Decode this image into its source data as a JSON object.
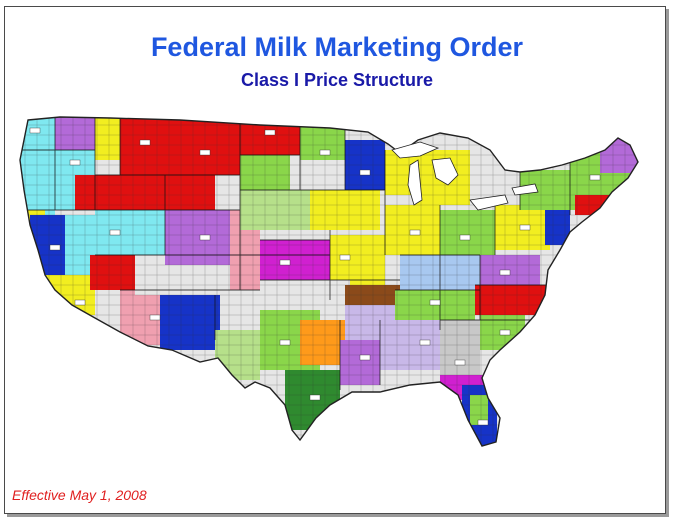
{
  "header": {
    "title": "Federal Milk Marketing Order",
    "subtitle": "Class I Price Structure"
  },
  "footer": {
    "effective_date": "Effective May 1, 2008"
  },
  "map": {
    "region": "Continental United States",
    "colors": {
      "cyan": "#7fe8f0",
      "blue": "#1633c8",
      "red": "#e01010",
      "yellow": "#f2ee20",
      "green": "#8ad64a",
      "purple": "#b36ad8",
      "magenta": "#d020d0",
      "pink": "#f0a0b0",
      "light_green": "#b6e08a",
      "brown": "#8b4a1a",
      "orange": "#ff9a1a",
      "light_blue": "#a8c8f0",
      "lavender": "#c8b8e8",
      "dark_green": "#2f8a2f",
      "gray": "#c8c8c8",
      "peach": "#f4d8b8"
    }
  }
}
